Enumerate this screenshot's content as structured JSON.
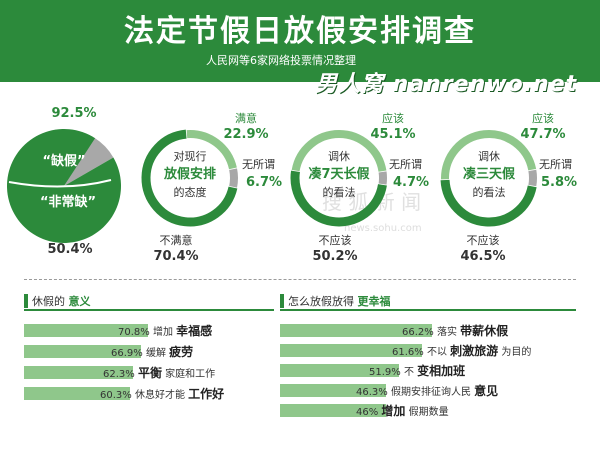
{
  "header": {
    "title": "法定节假日放假安排调查",
    "subtitle": "人民网等6家网络投票情况整理",
    "watermark": "男人窝 nanrenwo.net"
  },
  "colors": {
    "accent": "#2c8a3b",
    "light": "#8fc78b",
    "grey": "#a8a8a8"
  },
  "chart_data": [
    {
      "type": "pie",
      "values": [
        92.5,
        7.5
      ],
      "inner_values": [
        50.4,
        49.6
      ],
      "labels": [
        "“缺假”",
        "“非常缺”"
      ],
      "pct_top": "92.5%",
      "pct_bottom": "50.4%"
    },
    {
      "type": "pie",
      "center": [
        "对现行",
        "放假安排",
        "的态度"
      ],
      "slices": [
        {
          "name": "满意",
          "value": 22.9,
          "pct": "22.9%"
        },
        {
          "name": "无所谓",
          "value": 6.7,
          "pct": "6.7%"
        },
        {
          "name": "不满意",
          "value": 70.4,
          "pct": "70.4%"
        }
      ]
    },
    {
      "type": "pie",
      "center": [
        "调休",
        "凑7天长假",
        "的看法"
      ],
      "slices": [
        {
          "name": "应该",
          "value": 45.1,
          "pct": "45.1%"
        },
        {
          "name": "无所谓",
          "value": 4.7,
          "pct": "4.7%"
        },
        {
          "name": "不应该",
          "value": 50.2,
          "pct": "50.2%"
        }
      ]
    },
    {
      "type": "pie",
      "center": [
        "调休",
        "凑三天假",
        "的看法"
      ],
      "slices": [
        {
          "name": "应该",
          "value": 47.7,
          "pct": "47.7%"
        },
        {
          "name": "无所谓",
          "value": 5.8,
          "pct": "5.8%"
        },
        {
          "name": "不应该",
          "value": 46.5,
          "pct": "46.5%"
        }
      ]
    },
    {
      "type": "bar",
      "title_pre": "休假的 ",
      "title_kw": "意义",
      "items": [
        {
          "value": 70.8,
          "pct": "70.8%",
          "pre": "增加 ",
          "kw": "幸福感",
          "post": ""
        },
        {
          "value": 66.9,
          "pct": "66.9%",
          "pre": "缓解 ",
          "kw": "疲劳",
          "post": ""
        },
        {
          "value": 62.3,
          "pct": "62.3%",
          "pre": "",
          "kw": "平衡",
          "post": " 家庭和工作"
        },
        {
          "value": 60.3,
          "pct": "60.3%",
          "pre": "休息好才能 ",
          "kw": "工作好",
          "post": ""
        }
      ]
    },
    {
      "type": "bar",
      "title_pre": "怎么放假放得 ",
      "title_kw": "更幸福",
      "items": [
        {
          "value": 66.2,
          "pct": "66.2%",
          "pre": "落实 ",
          "kw": "带薪休假",
          "post": ""
        },
        {
          "value": 61.6,
          "pct": "61.6%",
          "pre": "不以 ",
          "kw": "刺激旅游",
          "post": " 为目的"
        },
        {
          "value": 51.9,
          "pct": "51.9%",
          "pre": "不 ",
          "kw": "变相加班",
          "post": ""
        },
        {
          "value": 46.3,
          "pct": "46.3%",
          "pre": "假期安排征询人民 ",
          "kw": "意见",
          "post": ""
        },
        {
          "value": 46,
          "pct": "46%",
          "pre": "",
          "kw": "增加",
          "post": " 假期数量"
        }
      ]
    }
  ]
}
